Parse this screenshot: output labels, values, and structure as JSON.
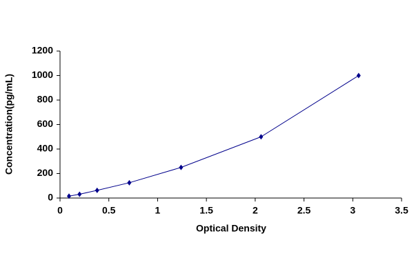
{
  "chart_data": {
    "type": "line",
    "x_label": "Optical Density",
    "y_label": "Concentration(pg/mL)",
    "x": [
      0.092,
      0.2,
      0.38,
      0.71,
      1.24,
      2.06,
      3.06
    ],
    "series": [
      {
        "color": "#00008b",
        "values": [
          15.6,
          31.25,
          62.5,
          125,
          250,
          500,
          1000
        ]
      }
    ],
    "xlim": [
      0,
      3.5
    ],
    "xticks": [
      0,
      0.5,
      1,
      1.5,
      2,
      2.5,
      3,
      3.5
    ],
    "ylim": [
      0,
      1200
    ],
    "yticks": [
      0,
      200,
      400,
      600,
      800,
      1000,
      1200
    ],
    "grid": false
  }
}
